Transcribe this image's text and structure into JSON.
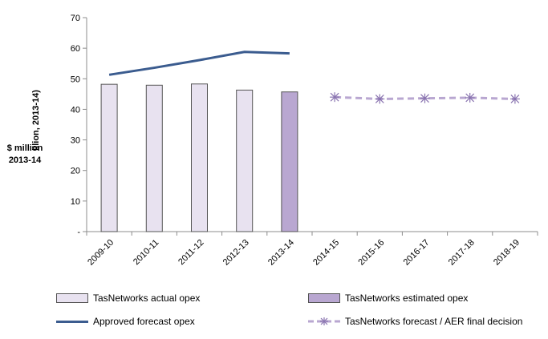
{
  "chart_data": {
    "type": "bar",
    "categories": [
      "2009-10",
      "2010-11",
      "2011-12",
      "2012-13",
      "2013-14",
      "2014-15",
      "2015-16",
      "2016-17",
      "2017-18",
      "2018-19"
    ],
    "ylim": [
      0,
      70
    ],
    "yticks": [
      "-",
      "10",
      "20",
      "30",
      "40",
      "50",
      "60",
      "70"
    ],
    "ytick_display": [
      "-",
      "10",
      "20",
      "30",
      "40",
      "50",
      "60",
      "70"
    ],
    "ylabel_rotated": "illion, 2013-14)",
    "ylabel_box_line1": "$ million",
    "ylabel_box_line2": "2013-14",
    "series": [
      {
        "name": "TasNetworks actual opex",
        "type": "bar",
        "values": [
          48.2,
          47.9,
          48.3,
          46.3,
          null,
          null,
          null,
          null,
          null,
          null
        ],
        "color": "#e8e2f0"
      },
      {
        "name": "TasNetworks estimated opex",
        "type": "bar",
        "values": [
          null,
          null,
          null,
          null,
          45.7,
          null,
          null,
          null,
          null,
          null
        ],
        "color": "#b9a7d1"
      },
      {
        "name": "Approved forecast opex",
        "type": "line",
        "values": [
          51.3,
          53.6,
          56.1,
          58.8,
          58.3,
          null,
          null,
          null,
          null,
          null
        ],
        "color": "#3b5c8f"
      },
      {
        "name": "TasNetworks forecast / AER final decision",
        "type": "line-dashed",
        "values": [
          null,
          null,
          null,
          null,
          null,
          44.0,
          43.4,
          43.6,
          43.8,
          43.4
        ],
        "color": "#b9a7d1"
      }
    ],
    "legend_position": "bottom",
    "grid": false
  }
}
